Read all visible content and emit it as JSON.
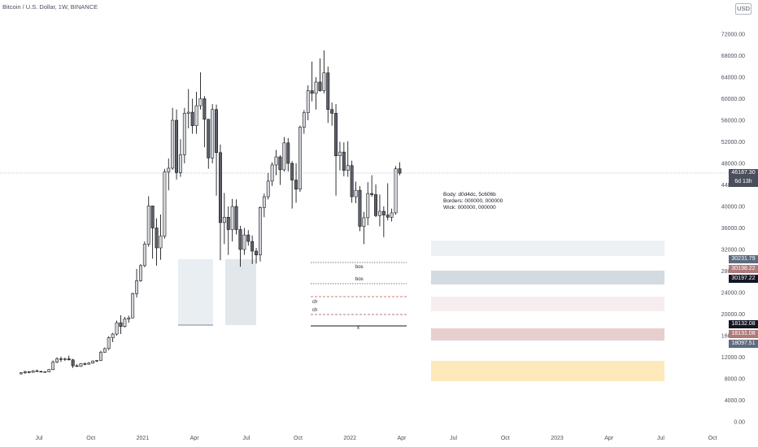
{
  "header": {
    "title": "Bitcoin / U.S. Dollar, 1W, BINANCE",
    "currency": "USD"
  },
  "note": {
    "lines": [
      "Body: d0d4dc, 5c606b",
      "Borders: 000000, 000000",
      "Wick: 000000, 000000"
    ]
  },
  "last_price": {
    "price": "46187.30",
    "countdown": "6d 13h"
  },
  "price_tags": [
    {
      "label": "30231.79",
      "value": 30231.79,
      "color": "#5d6b7d"
    },
    {
      "label": "30198.22",
      "value": 30198.22,
      "color": "#b07a7a"
    },
    {
      "label": "30197.22",
      "value": 30197.22,
      "color": "#131722"
    },
    {
      "label": "18132.08",
      "value": 18132.08,
      "color": "#131722"
    },
    {
      "label": "18131.08",
      "value": 18131.08,
      "color": "#b07a7a"
    },
    {
      "label": "18097.51",
      "value": 18097.51,
      "color": "#5d6b7d"
    }
  ],
  "chart_data": {
    "type": "candlestick",
    "title": "Bitcoin / U.S. Dollar, 1W, BINANCE",
    "ylim": [
      0,
      75000
    ],
    "y_ticks": [
      0,
      4000,
      8000,
      12000,
      16000,
      20000,
      24000,
      28000,
      32000,
      36000,
      40000,
      44000,
      48000,
      52000,
      56000,
      60000,
      64000,
      68000,
      72000
    ],
    "x_ticks": [
      "Jul",
      "Oct",
      "2021",
      "Apr",
      "Jul",
      "Oct",
      "2022",
      "Apr",
      "Jul",
      "Oct",
      "2023",
      "Apr",
      "Jul",
      "Oct"
    ],
    "x_tick_weeks": [
      0,
      13,
      26,
      39,
      52,
      65,
      78,
      91,
      104,
      117,
      130,
      143,
      156,
      169
    ],
    "first_week_label": "2020-07",
    "last_price": 46187.3,
    "candles": [
      [
        8900,
        9200,
        8800,
        9100
      ],
      [
        9100,
        9500,
        8900,
        9300
      ],
      [
        9300,
        9400,
        9000,
        9200
      ],
      [
        9200,
        9600,
        9100,
        9450
      ],
      [
        9450,
        9700,
        9300,
        9350
      ],
      [
        9350,
        9500,
        9200,
        9250
      ],
      [
        9250,
        9400,
        9100,
        9300
      ],
      [
        9300,
        9800,
        9200,
        9700
      ],
      [
        9700,
        11400,
        9600,
        11100
      ],
      [
        11100,
        12000,
        10900,
        11700
      ],
      [
        11700,
        12100,
        11100,
        11600
      ],
      [
        11600,
        11900,
        11300,
        11700
      ],
      [
        11700,
        12300,
        11400,
        11500
      ],
      [
        11500,
        11700,
        10000,
        10400
      ],
      [
        10400,
        10700,
        10200,
        10300
      ],
      [
        10300,
        10900,
        10200,
        10800
      ],
      [
        10800,
        11000,
        10500,
        10700
      ],
      [
        10700,
        11100,
        10600,
        10900
      ],
      [
        10900,
        11400,
        10800,
        11300
      ],
      [
        11300,
        11500,
        11100,
        11400
      ],
      [
        11400,
        13200,
        11300,
        12900
      ],
      [
        12900,
        13800,
        12800,
        13600
      ],
      [
        13600,
        15900,
        13300,
        15600
      ],
      [
        15600,
        16500,
        14800,
        16300
      ],
      [
        16300,
        18800,
        16000,
        18400
      ],
      [
        18400,
        19800,
        16300,
        17700
      ],
      [
        17700,
        19500,
        17500,
        19100
      ],
      [
        19100,
        19700,
        18400,
        19300
      ],
      [
        19300,
        24000,
        19200,
        23800
      ],
      [
        23800,
        28400,
        23100,
        26200
      ],
      [
        26200,
        29300,
        26000,
        29000
      ],
      [
        29000,
        33500,
        28700,
        33000
      ],
      [
        33000,
        41900,
        32500,
        40100
      ],
      [
        40100,
        40100,
        30300,
        36000
      ],
      [
        36000,
        37800,
        29000,
        32300
      ],
      [
        32300,
        38500,
        30100,
        34500
      ],
      [
        34500,
        47000,
        34000,
        46400
      ],
      [
        46400,
        48900,
        43000,
        47100
      ],
      [
        47100,
        58300,
        46800,
        56000
      ],
      [
        56000,
        58000,
        45000,
        46300
      ],
      [
        46300,
        52500,
        45500,
        49600
      ],
      [
        49600,
        58300,
        48000,
        57300
      ],
      [
        57300,
        61800,
        54500,
        57500
      ],
      [
        57500,
        60000,
        53500,
        55000
      ],
      [
        55000,
        61300,
        53500,
        58700
      ],
      [
        58700,
        64900,
        58000,
        60000
      ],
      [
        60000,
        60500,
        51000,
        56200
      ],
      [
        56200,
        56200,
        47000,
        49000
      ],
      [
        49000,
        59000,
        48000,
        58000
      ],
      [
        58000,
        58900,
        42000,
        50000
      ],
      [
        50000,
        51500,
        30000,
        37000
      ],
      [
        37000,
        42500,
        33000,
        38000
      ],
      [
        38000,
        40000,
        31000,
        35700
      ],
      [
        35700,
        41400,
        33500,
        40000
      ],
      [
        40000,
        41300,
        34800,
        35700
      ],
      [
        35700,
        36400,
        28800,
        32000
      ],
      [
        32000,
        36000,
        31000,
        34700
      ],
      [
        34700,
        35600,
        32700,
        33500
      ],
      [
        33500,
        34600,
        29300,
        31700
      ],
      [
        31700,
        32300,
        29400,
        31000
      ],
      [
        31000,
        40000,
        29800,
        39800
      ],
      [
        39800,
        42400,
        38000,
        41800
      ],
      [
        41800,
        46200,
        41300,
        44700
      ],
      [
        44700,
        48200,
        43800,
        47700
      ],
      [
        47700,
        50500,
        45800,
        49200
      ],
      [
        49200,
        49500,
        44000,
        46800
      ],
      [
        46800,
        52900,
        46500,
        51800
      ],
      [
        51800,
        52700,
        46500,
        48000
      ],
      [
        48000,
        48400,
        39600,
        44900
      ],
      [
        44900,
        48000,
        40700,
        43200
      ],
      [
        43200,
        55000,
        42700,
        54700
      ],
      [
        54700,
        57900,
        53500,
        57400
      ],
      [
        57400,
        62500,
        56000,
        61500
      ],
      [
        61500,
        66900,
        59500,
        61000
      ],
      [
        61000,
        64000,
        58000,
        63100
      ],
      [
        63100,
        67500,
        61300,
        61500
      ],
      [
        61500,
        69000,
        61000,
        64800
      ],
      [
        64800,
        66000,
        55500,
        58000
      ],
      [
        58000,
        59300,
        55000,
        57300
      ],
      [
        57300,
        59000,
        42000,
        49400
      ],
      [
        49400,
        52000,
        46700,
        50100
      ],
      [
        50100,
        51900,
        45600,
        46700
      ],
      [
        46700,
        52100,
        45500,
        47600
      ],
      [
        47600,
        48500,
        40700,
        41800
      ],
      [
        41800,
        44600,
        40600,
        43000
      ],
      [
        43000,
        43800,
        35400,
        36300
      ],
      [
        36300,
        39000,
        33000,
        37900
      ],
      [
        37900,
        44500,
        36500,
        42400
      ],
      [
        42400,
        45800,
        41800,
        42200
      ],
      [
        42200,
        44100,
        38000,
        38300
      ],
      [
        38300,
        42200,
        36300,
        39100
      ],
      [
        39100,
        40000,
        34300,
        38400
      ],
      [
        38400,
        44300,
        37400,
        38000
      ],
      [
        38000,
        39600,
        37200,
        38800
      ],
      [
        38800,
        47500,
        38500,
        47000
      ],
      [
        47000,
        48200,
        45800,
        46187
      ]
    ]
  }
}
